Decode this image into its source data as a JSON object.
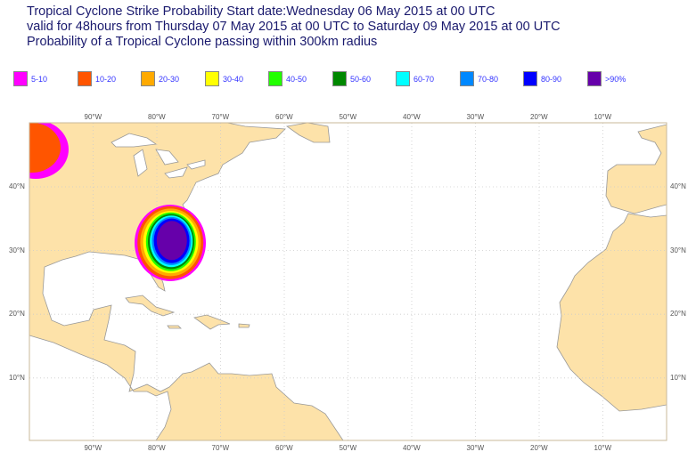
{
  "title": {
    "line1": "Tropical Cyclone Strike Probability Start date:Wednesday 06 May 2015 at 00 UTC",
    "line2": "valid for 48hours from Thursday 07 May 2015 at 00 UTC to  Saturday 09 May 2015 at 00 UTC",
    "line3": "Probability of a Tropical Cyclone passing within 300km radius"
  },
  "legend": [
    {
      "label": "5-10",
      "color": "#ff00ff"
    },
    {
      "label": "10-20",
      "color": "#ff5500"
    },
    {
      "label": "20-30",
      "color": "#ffaa00"
    },
    {
      "label": "30-40",
      "color": "#ffff00"
    },
    {
      "label": "40-50",
      "color": "#22ff00"
    },
    {
      "label": "50-60",
      "color": "#008800"
    },
    {
      "label": "60-70",
      "color": "#00ffff"
    },
    {
      "label": "70-80",
      "color": "#0088ff"
    },
    {
      "label": "80-90",
      "color": "#0000ff"
    },
    {
      "label": ">90%",
      "color": "#6600aa"
    }
  ],
  "lon_labels": [
    "90°W",
    "80°W",
    "70°W",
    "60°W",
    "50°W",
    "40°W",
    "30°W",
    "20°W",
    "10°W"
  ],
  "lat_labels": [
    "40°N",
    "30°N",
    "20°N",
    "10°N"
  ],
  "colors": {
    "land": "#fde2a9",
    "coast": "#999"
  }
}
